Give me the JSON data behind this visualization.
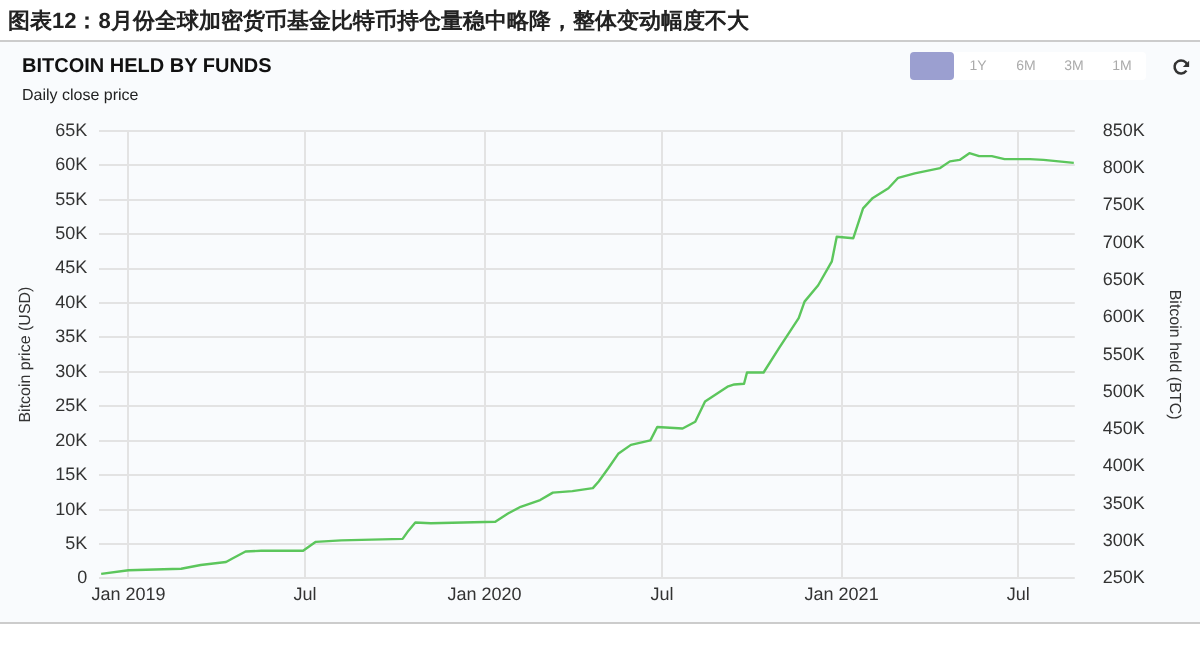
{
  "chart_data": {
    "type": "line",
    "title": "图表12：8月份全球加密货币基金比特币持仓量稳中略降，整体变动幅度不大",
    "subtitle": "BITCOIN HELD BY FUNDS",
    "annotations": [
      "Daily close price",
      "1Y",
      "6M",
      "3M",
      "1M"
    ],
    "ylabel": "Bitcoin price (USD)",
    "y2label": "Bitcoin held (BTC)",
    "xlim": [
      "2018-12-02",
      "2021-08-28"
    ],
    "xticks": [
      {
        "value": "2019-01-01",
        "label": "Jan 2019"
      },
      {
        "value": "2019-07-01",
        "label": "Jul"
      },
      {
        "value": "2020-01-01",
        "label": "Jan 2020"
      },
      {
        "value": "2020-07-01",
        "label": "Jul"
      },
      {
        "value": "2021-01-01",
        "label": "Jan 2021"
      },
      {
        "value": "2021-07-01",
        "label": "Jul"
      }
    ],
    "ylim": [
      0,
      65000
    ],
    "yticks": [
      0,
      {
        "value": 5000,
        "label": "5K"
      },
      {
        "value": 10000,
        "label": "10K"
      },
      {
        "value": 15000,
        "label": "15K"
      },
      {
        "value": 20000,
        "label": "20K"
      },
      {
        "value": 25000,
        "label": "25K"
      },
      {
        "value": 30000,
        "label": "30K"
      },
      {
        "value": 35000,
        "label": "35K"
      },
      {
        "value": 40000,
        "label": "40K"
      },
      {
        "value": 45000,
        "label": "45K"
      },
      {
        "value": 50000,
        "label": "50K"
      },
      {
        "value": 55000,
        "label": "55K"
      },
      {
        "value": 60000,
        "label": "60K"
      },
      {
        "value": 65000,
        "label": "65K"
      }
    ],
    "y2lim": [
      250000,
      850000
    ],
    "y2ticks": [
      {
        "value": 250000,
        "label": "250K"
      },
      {
        "value": 300000,
        "label": "300K"
      },
      {
        "value": 350000,
        "label": "350K"
      },
      {
        "value": 400000,
        "label": "400K"
      },
      {
        "value": 450000,
        "label": "450K"
      },
      {
        "value": 500000,
        "label": "500K"
      },
      {
        "value": 550000,
        "label": "550K"
      },
      {
        "value": 600000,
        "label": "600K"
      },
      {
        "value": 650000,
        "label": "650K"
      },
      {
        "value": 700000,
        "label": "700K"
      },
      {
        "value": 750000,
        "label": "750K"
      },
      {
        "value": 800000,
        "label": "800K"
      },
      {
        "value": 850000,
        "label": "850K"
      }
    ],
    "grid": true,
    "legend": false,
    "marker": "none",
    "line_style": "solid",
    "series": [
      {
        "color": "#5cc65c",
        "axis": "y2",
        "x": [
          "2018-12-04",
          "2019-01-01",
          "2019-02-24",
          "2019-03-16",
          "2019-04-11",
          "2019-04-18",
          "2019-05-01",
          "2019-05-17",
          "2019-06-29",
          "2019-07-12",
          "2019-08-07",
          "2019-10-09",
          "2019-10-15",
          "2019-10-22",
          "2019-11-07",
          "2020-01-12",
          "2020-01-25",
          "2020-02-07",
          "2020-02-27",
          "2020-03-11",
          "2020-03-31",
          "2020-04-21",
          "2020-04-27",
          "2020-05-07",
          "2020-05-17",
          "2020-05-30",
          "2020-06-19",
          "2020-06-26",
          "2020-07-22",
          "2020-08-04",
          "2020-08-14",
          "2020-09-06",
          "2020-09-13",
          "2020-09-23",
          "2020-09-26",
          "2020-10-13",
          "2020-10-29",
          "2020-11-18",
          "2020-11-24",
          "2020-12-08",
          "2020-12-22",
          "2020-12-27",
          "2021-01-13",
          "2021-01-23",
          "2021-02-02",
          "2021-02-18",
          "2021-02-28",
          "2021-03-17",
          "2021-04-12",
          "2021-04-22",
          "2021-05-02",
          "2021-05-12",
          "2021-05-22",
          "2021-06-04",
          "2021-06-17",
          "2021-07-13",
          "2021-07-27",
          "2021-08-27"
        ],
        "values": [
          256000,
          261000,
          263000,
          268000,
          272000,
          277000,
          286000,
          287000,
          287000,
          299000,
          301000,
          303000,
          314000,
          325000,
          324000,
          326000,
          337000,
          346000,
          355000,
          365000,
          367000,
          371000,
          380000,
          398000,
          417000,
          429000,
          435000,
          453000,
          451000,
          460000,
          487000,
          507000,
          510000,
          511000,
          526000,
          526000,
          559000,
          599000,
          621000,
          643000,
          675000,
          708000,
          706000,
          746000,
          760000,
          773000,
          787000,
          793000,
          800000,
          809000,
          811000,
          820000,
          816000,
          816000,
          812000,
          812000,
          811000,
          807000
        ]
      }
    ]
  }
}
